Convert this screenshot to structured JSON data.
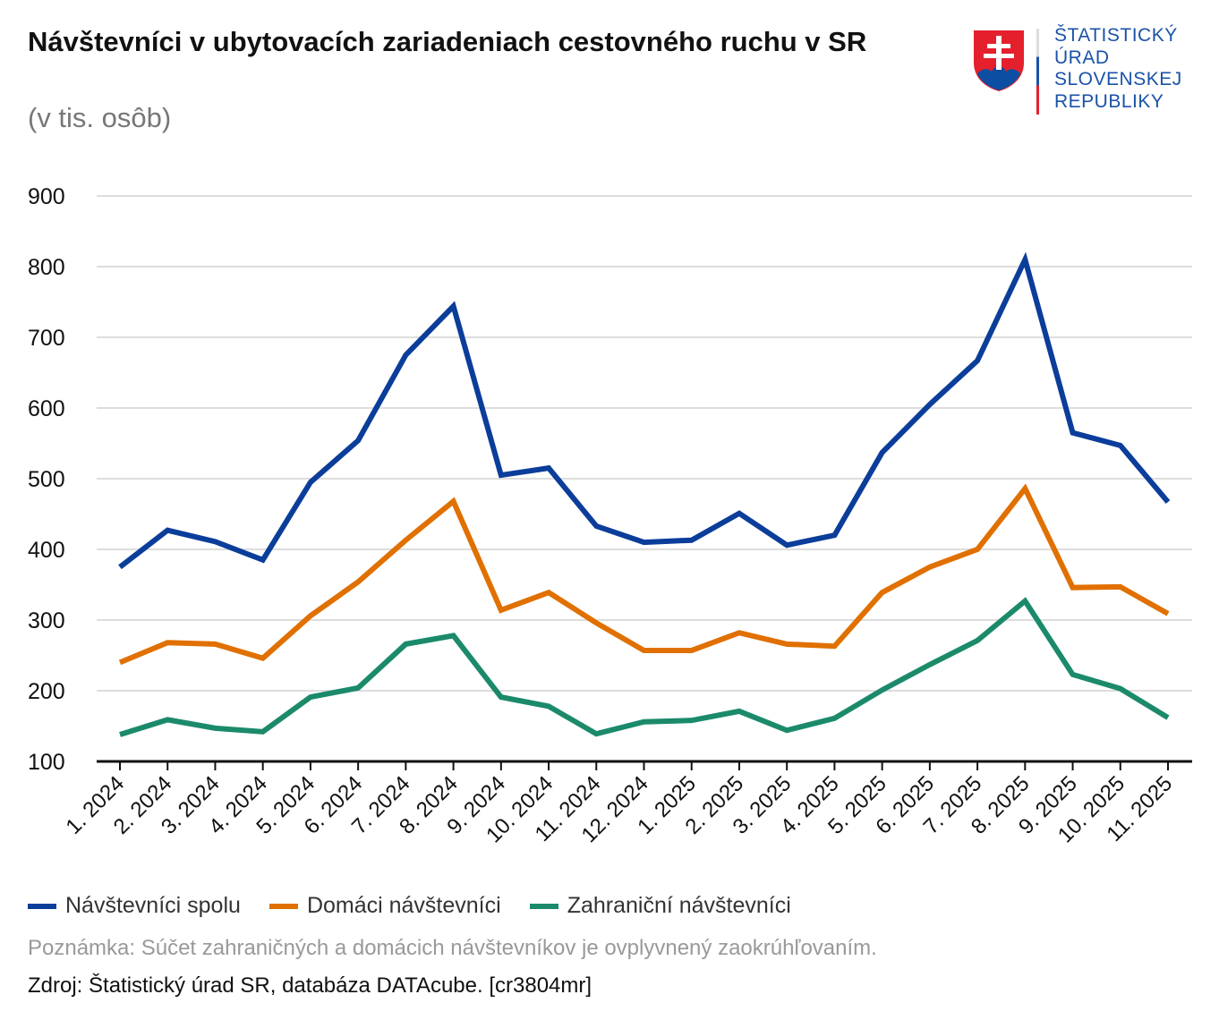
{
  "title": "Návštevníci v ubytovacích zariadeniach cestovného ruchu v SR",
  "subtitle": "(v tis. osôb)",
  "logo": {
    "text_lines": [
      "ŠTATISTICKÝ",
      "ÚRAD",
      "SLOVENSKEJ",
      "REPUBLIKY"
    ]
  },
  "note": "Poznámka: Súčet zahraničných a domácich návštevníkov je ovplyvnený zaokrúhľovaním.",
  "source": "Zdroj: Štatistický úrad SR, databáza DATAcube. [cr3804mr]",
  "chart_data": {
    "type": "line",
    "title": "Návštevníci v ubytovacích zariadeniach cestovného ruchu v SR",
    "subtitle": "(v tis. osôb)",
    "ylim": [
      100,
      900
    ],
    "yticks": [
      100,
      200,
      300,
      400,
      500,
      600,
      700,
      800,
      900
    ],
    "grid": true,
    "legend": "bottom-left",
    "categories": [
      "1. 2024",
      "2. 2024",
      "3. 2024",
      "4. 2024",
      "5. 2024",
      "6. 2024",
      "7. 2024",
      "8. 2024",
      "9. 2024",
      "10. 2024",
      "11. 2024",
      "12. 2024",
      "1. 2025",
      "2. 2025",
      "3. 2025",
      "4. 2025",
      "5. 2025",
      "6. 2025",
      "7. 2025",
      "8. 2025",
      "9. 2025",
      "10. 2025",
      "11. 2025"
    ],
    "series": [
      {
        "name": "Návštevníci spolu",
        "color": "#0b3d9a",
        "values": [
          375,
          427,
          411,
          385,
          495,
          554,
          675,
          744,
          505,
          515,
          433,
          410,
          413,
          451,
          406,
          420,
          537,
          605,
          667,
          810,
          565,
          547,
          467
        ]
      },
      {
        "name": "Domáci návštevníci",
        "color": "#e07000",
        "values": [
          240,
          268,
          266,
          246,
          306,
          354,
          413,
          468,
          314,
          339,
          296,
          257,
          257,
          282,
          266,
          263,
          339,
          375,
          400,
          486,
          346,
          347,
          309
        ]
      },
      {
        "name": "Zahraniční návštevníci",
        "color": "#1b8a6b",
        "values": [
          138,
          159,
          147,
          142,
          191,
          204,
          266,
          278,
          191,
          178,
          139,
          156,
          158,
          171,
          144,
          161,
          201,
          237,
          271,
          327,
          223,
          203,
          162
        ]
      }
    ]
  }
}
